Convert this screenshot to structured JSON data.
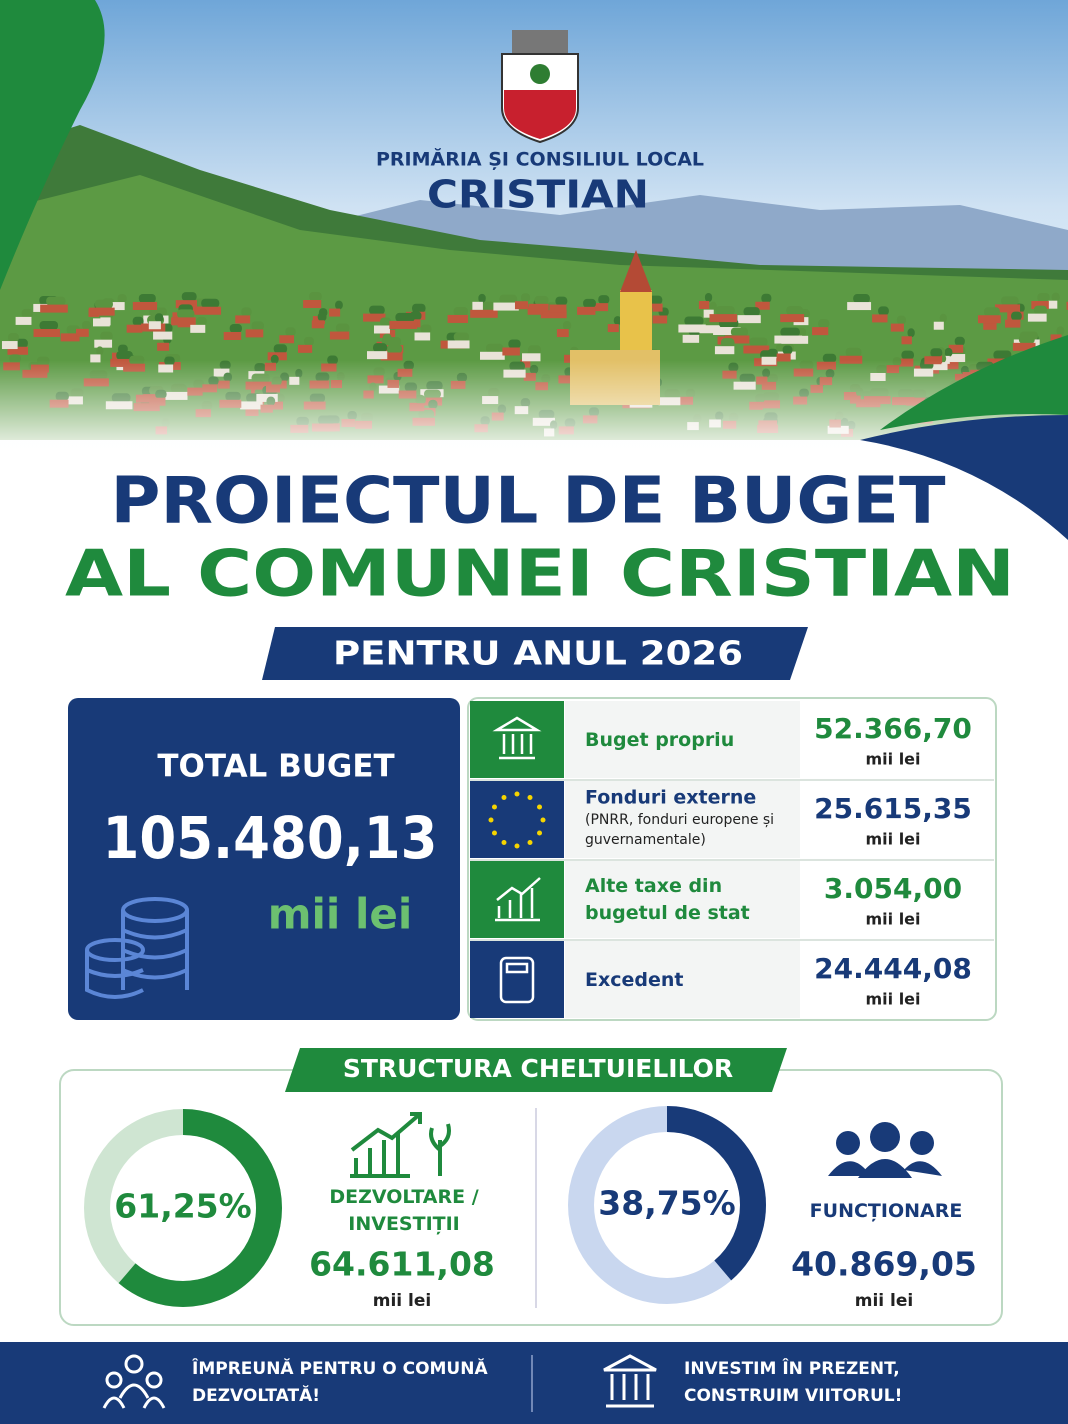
{
  "header": {
    "institution": "PRIMĂRIA ȘI CONSILIUL LOCAL",
    "name": "CRISTIAN"
  },
  "title": {
    "line1": "PROIECTUL DE BUGET",
    "line2": "AL COMUNEI CRISTIAN",
    "subtitle": "PENTRU ANUL 2026"
  },
  "total": {
    "label": "TOTAL BUGET",
    "amount": "105.480,13",
    "unit": "mii lei"
  },
  "sources": [
    {
      "name": "Buget propriu",
      "amount": "52.366,70",
      "unit": "mii lei",
      "color": "#1f8a3d"
    },
    {
      "name": "Fonduri externe",
      "note": "(PNRR, fonduri europene și guvernamentale)",
      "amount": "25.615,35",
      "unit": "mii lei",
      "color": "#183a78"
    },
    {
      "name": "Alte taxe din bugetul de stat",
      "amount": "3.054,00",
      "unit": "mii lei",
      "color": "#1f8a3d"
    },
    {
      "name": "Excedent",
      "amount": "24.444,08",
      "unit": "mii lei",
      "color": "#183a78"
    }
  ],
  "expenses": {
    "title": "STRUCTURA CHELTUIELILOR",
    "items": [
      {
        "share": {
          "value": 61.25,
          "label": "61,25%"
        },
        "name": "DEZVOLTARE / INVESTIȚII",
        "amount": "64.611,08",
        "unit": "mii lei",
        "color": "#1f8a3d",
        "track": "#cfe5d2"
      },
      {
        "share": {
          "value": 38.75,
          "label": "38,75%"
        },
        "name": "FUNCȚIONARE",
        "amount": "40.869,05",
        "unit": "mii lei",
        "color": "#183a78",
        "track": "#c9d7ef"
      }
    ]
  },
  "footer": [
    "ÎMPREUNĂ PENTRU O COMUNĂ DEZVOLTATĂ!",
    "INVESTIM ÎN PREZENT, CONSTRUIM VIITORUL!"
  ]
}
